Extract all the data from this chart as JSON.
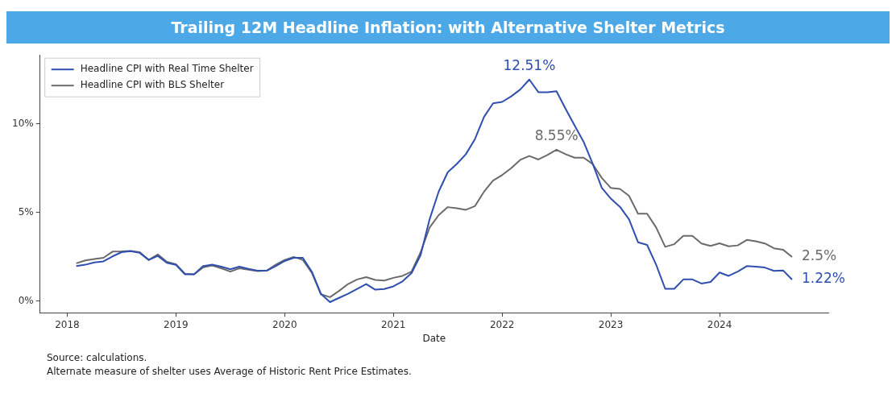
{
  "chart_data": {
    "type": "line",
    "title": "Trailing 12M Headline Inflation: with Alternative Shelter Metrics",
    "xlabel": "Date",
    "x": [
      "2018-02",
      "2018-03",
      "2018-04",
      "2018-05",
      "2018-06",
      "2018-07",
      "2018-08",
      "2018-09",
      "2018-10",
      "2018-11",
      "2018-12",
      "2019-01",
      "2019-02",
      "2019-03",
      "2019-04",
      "2019-05",
      "2019-06",
      "2019-07",
      "2019-08",
      "2019-09",
      "2019-10",
      "2019-11",
      "2019-12",
      "2020-01",
      "2020-02",
      "2020-03",
      "2020-04",
      "2020-05",
      "2020-06",
      "2020-07",
      "2020-08",
      "2020-09",
      "2020-10",
      "2020-11",
      "2020-12",
      "2021-01",
      "2021-02",
      "2021-03",
      "2021-04",
      "2021-05",
      "2021-06",
      "2021-07",
      "2021-08",
      "2021-09",
      "2021-10",
      "2021-11",
      "2021-12",
      "2022-01",
      "2022-02",
      "2022-03",
      "2022-04",
      "2022-05",
      "2022-06",
      "2022-07",
      "2022-08",
      "2022-09",
      "2022-10",
      "2022-11",
      "2022-12",
      "2023-01",
      "2023-02",
      "2023-03",
      "2023-04",
      "2023-05",
      "2023-06",
      "2023-07",
      "2023-08",
      "2023-09",
      "2023-10",
      "2023-11",
      "2023-12",
      "2024-01",
      "2024-02",
      "2024-03",
      "2024-04",
      "2024-05",
      "2024-06",
      "2024-07",
      "2024-08",
      "2024-09"
    ],
    "series": [
      {
        "name": "Headline CPI with Real Time Shelter",
        "color": "#2f4fb0",
        "values": [
          1.98,
          2.06,
          2.19,
          2.25,
          2.53,
          2.77,
          2.83,
          2.73,
          2.33,
          2.56,
          2.17,
          2.05,
          1.52,
          1.52,
          1.98,
          2.06,
          1.95,
          1.8,
          1.95,
          1.83,
          1.72,
          1.72,
          1.98,
          2.27,
          2.45,
          2.45,
          1.67,
          0.42,
          -0.05,
          0.19,
          0.42,
          0.7,
          0.97,
          0.65,
          0.69,
          0.84,
          1.12,
          1.59,
          2.6,
          4.63,
          6.19,
          7.28,
          7.75,
          8.3,
          9.15,
          10.4,
          11.17,
          11.25,
          11.56,
          11.95,
          12.51,
          11.8,
          11.8,
          11.85,
          10.86,
          9.92,
          8.99,
          7.75,
          6.4,
          5.79,
          5.33,
          4.63,
          3.33,
          3.18,
          2.06,
          0.7,
          0.7,
          1.23,
          1.23,
          1.0,
          1.09,
          1.62,
          1.43,
          1.67,
          1.98,
          1.95,
          1.9,
          1.71,
          1.74,
          1.22
        ]
      },
      {
        "name": "Headline CPI with BLS Shelter",
        "color": "#6b6b6b",
        "values": [
          2.14,
          2.3,
          2.38,
          2.45,
          2.8,
          2.81,
          2.84,
          2.77,
          2.33,
          2.64,
          2.22,
          2.09,
          1.55,
          1.52,
          1.91,
          2.02,
          1.86,
          1.67,
          1.86,
          1.78,
          1.7,
          1.72,
          2.06,
          2.33,
          2.5,
          2.33,
          1.6,
          0.39,
          0.23,
          0.58,
          0.97,
          1.23,
          1.36,
          1.2,
          1.17,
          1.32,
          1.43,
          1.67,
          2.76,
          4.16,
          4.86,
          5.31,
          5.25,
          5.16,
          5.37,
          6.18,
          6.81,
          7.12,
          7.51,
          7.98,
          8.2,
          8.0,
          8.25,
          8.55,
          8.3,
          8.1,
          8.1,
          7.74,
          6.96,
          6.39,
          6.34,
          5.95,
          4.94,
          4.94,
          4.16,
          3.07,
          3.22,
          3.69,
          3.69,
          3.26,
          3.12,
          3.27,
          3.1,
          3.15,
          3.46,
          3.38,
          3.26,
          2.99,
          2.91,
          2.5
        ]
      }
    ],
    "xlim": [
      "2017-10",
      "2025-01"
    ],
    "xticks": [
      "2018",
      "2019",
      "2020",
      "2021",
      "2022",
      "2023",
      "2024"
    ],
    "ylim": [
      -0.65,
      13.9
    ],
    "yticks": [
      {
        "value": 0,
        "label": "0%"
      },
      {
        "value": 5,
        "label": "5%"
      },
      {
        "value": 10,
        "label": "10%"
      }
    ],
    "annotations": [
      {
        "text": "12.51%",
        "x": "2022-04",
        "y": 12.51
      },
      {
        "text": "8.55%",
        "x": "2022-07",
        "y": 8.55
      },
      {
        "text": "2.5%",
        "x": "2024-09",
        "y": 2.5
      },
      {
        "text": "1.22%",
        "x": "2024-09",
        "y": 1.22
      },
      "Source: calculations.",
      "Alternate measure of shelter uses Average of Historic Rent Price Estimates."
    ],
    "legend": "top left",
    "grid": false,
    "marker": "none",
    "line_style": "solid"
  }
}
